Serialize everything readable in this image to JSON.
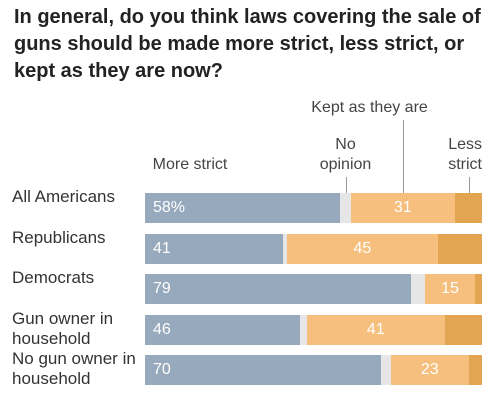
{
  "chart_data": {
    "type": "stacked-bar-horizontal",
    "title": "In general, do you think laws covering the sale of guns should be made more strict, less strict, or kept as they are now?",
    "categories": [
      "All Americans",
      "Republicans",
      "Democrats",
      "Gun owner in household",
      "No gun owner in household"
    ],
    "xlim": [
      0,
      100
    ],
    "series": [
      {
        "name": "More strict",
        "color": "#97a9bc",
        "values": [
          58,
          41,
          79,
          46,
          70
        ],
        "value_labels": [
          "58%",
          "41",
          "79",
          "46",
          "70"
        ],
        "show_labels": true
      },
      {
        "name": "No opinion",
        "color": "#e6e6e6",
        "values": [
          3,
          1,
          4,
          2,
          3
        ],
        "show_labels": false
      },
      {
        "name": "Kept as they are",
        "color": "#f6bf7d",
        "values": [
          31,
          45,
          15,
          41,
          23
        ],
        "show_labels": true
      },
      {
        "name": "Less strict",
        "color": "#e3a551",
        "values": [
          8,
          13,
          2,
          11,
          4
        ],
        "show_labels": false
      }
    ]
  }
}
